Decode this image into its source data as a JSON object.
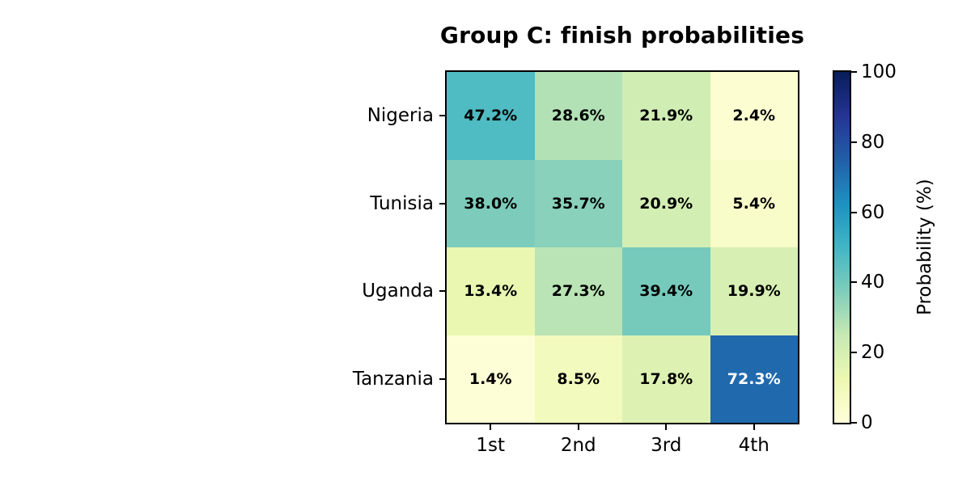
{
  "chart_data": {
    "type": "heatmap",
    "title": "Group C: finish probabilities",
    "rows": [
      "Nigeria",
      "Tunisia",
      "Uganda",
      "Tanzania"
    ],
    "columns": [
      "1st",
      "2nd",
      "3rd",
      "4th"
    ],
    "values": [
      [
        47.2,
        28.6,
        21.9,
        2.4
      ],
      [
        38.0,
        35.7,
        20.9,
        5.4
      ],
      [
        13.4,
        27.3,
        39.4,
        19.9
      ],
      [
        1.4,
        8.5,
        17.8,
        72.3
      ]
    ],
    "value_suffix": "%",
    "value_decimals": 1,
    "colorbar": {
      "label": "Probability (%)",
      "ticks": [
        0,
        20,
        40,
        60,
        80,
        100
      ],
      "min": 0,
      "max": 100
    },
    "colormap": {
      "name": "YlGnBu",
      "stops": [
        [
          0.0,
          "#ffffd9"
        ],
        [
          0.125,
          "#edf8b1"
        ],
        [
          0.25,
          "#c7e9b4"
        ],
        [
          0.375,
          "#7fcdbb"
        ],
        [
          0.5,
          "#41b6c4"
        ],
        [
          0.625,
          "#1d91c0"
        ],
        [
          0.75,
          "#225ea8"
        ],
        [
          0.875,
          "#253494"
        ],
        [
          1.0,
          "#081d58"
        ]
      ]
    },
    "styles": {
      "background": "#ffffff",
      "axis_text": "#000000",
      "cell_text_dark": "#000000",
      "cell_text_light": "#ffffff",
      "border": "#000000"
    },
    "layout_hints": {
      "grid": false,
      "colorbar_position": "right",
      "cell_labels": true
    }
  }
}
